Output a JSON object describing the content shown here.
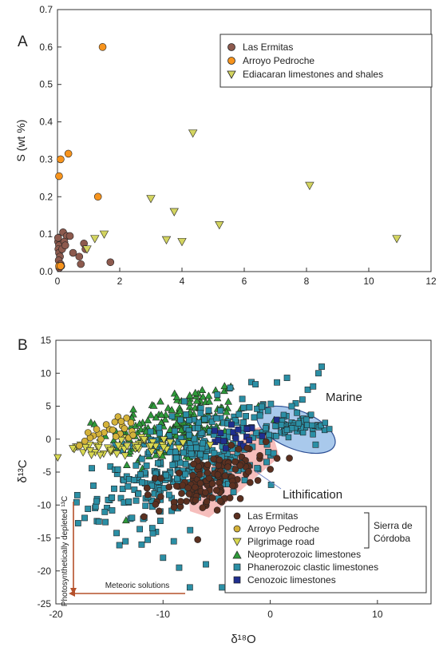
{
  "colors": {
    "las_ermitas": "#8d5a4e",
    "arroyo_pedroche": "#f7941d",
    "ediacaran": "#d3d460",
    "pilgrimage": "#d8d850",
    "arroyo_b": "#d4b23a",
    "neoproterozoic": "#2e9a3a",
    "phanerozoic": "#2b8fa5",
    "cenozoic": "#1f2f8f",
    "las_ermitas_b": "#5b3020",
    "marine_fill": "#a9c9ec",
    "lithif_fill": "#f3a8a6",
    "arrow": "#b5502a"
  },
  "chart_data": [
    {
      "type": "scatter",
      "panel_label": "A",
      "xlabel": "",
      "ylabel": "S (wt %)",
      "xlim": [
        0,
        12
      ],
      "ylim": [
        0,
        0.7
      ],
      "xticks": [
        "0",
        "2",
        "4",
        "6",
        "8",
        "10",
        "12"
      ],
      "yticks": [
        "0.0",
        "0.1",
        "0.2",
        "0.3",
        "0.4",
        "0.5",
        "0.6",
        "0.7"
      ],
      "legend_position": "top-right",
      "series": [
        {
          "name": "Las Ermitas",
          "marker": "circle",
          "points": [
            [
              0.02,
              0.08
            ],
            [
              0.05,
              0.07
            ],
            [
              0.03,
              0.06
            ],
            [
              0.05,
              0.05
            ],
            [
              0.08,
              0.04
            ],
            [
              0.04,
              0.03
            ],
            [
              0.1,
              0.02
            ],
            [
              0.12,
              0.015
            ],
            [
              0.06,
              0.01
            ],
            [
              0.15,
              0.06
            ],
            [
              0.18,
              0.105
            ],
            [
              0.3,
              0.095
            ],
            [
              0.4,
              0.095
            ],
            [
              0.22,
              0.08
            ],
            [
              0.25,
              0.07
            ],
            [
              0.5,
              0.05
            ],
            [
              0.7,
              0.04
            ],
            [
              0.75,
              0.02
            ],
            [
              0.85,
              0.075
            ],
            [
              0.9,
              0.06
            ],
            [
              1.7,
              0.025
            ],
            [
              0.02,
              0.09
            ]
          ]
        },
        {
          "name": "Arroyo Pedroche",
          "marker": "circle",
          "points": [
            [
              1.45,
              0.6
            ],
            [
              0.35,
              0.315
            ],
            [
              0.1,
              0.3
            ],
            [
              0.05,
              0.255
            ],
            [
              1.3,
              0.2
            ],
            [
              0.05,
              0.015
            ],
            [
              0.1,
              0.015
            ]
          ]
        },
        {
          "name": "Ediacaran limestones and shales",
          "marker": "triangle-down",
          "points": [
            [
              4.35,
              0.37
            ],
            [
              8.1,
              0.23
            ],
            [
              3.0,
              0.195
            ],
            [
              3.75,
              0.16
            ],
            [
              5.2,
              0.125
            ],
            [
              1.5,
              0.1
            ],
            [
              1.2,
              0.088
            ],
            [
              3.5,
              0.085
            ],
            [
              4.0,
              0.08
            ],
            [
              10.9,
              0.088
            ],
            [
              0.95,
              0.06
            ]
          ]
        }
      ]
    },
    {
      "type": "scatter",
      "panel_label": "B",
      "xlabel": "δ¹⁸O",
      "ylabel": "δ¹³C",
      "xlim": [
        -20,
        15
      ],
      "ylim": [
        -25,
        15
      ],
      "xticks": [
        "-20",
        "-10",
        "0",
        "10"
      ],
      "yticks": [
        "-25",
        "-20",
        "-15",
        "-10",
        "-5",
        "0",
        "5",
        "10",
        "15"
      ],
      "legend_position": "bottom-right",
      "legend_group": "Sierra de Córdoba",
      "legend_group_lines": [
        "Sierra de",
        "Córdoba"
      ],
      "annotations": {
        "marine": "Marine",
        "lithification": "Lithification",
        "meteoric": "Meteoric solutions",
        "photosynthetic": "Photosynthetically depleted ¹³C"
      },
      "series": [
        {
          "name": "Las Ermitas",
          "marker": "circle",
          "cloud": {
            "cx": -5.5,
            "cy": -6.5,
            "sx": 2.5,
            "sy": 2.5,
            "rho": 0.55,
            "n": 130
          }
        },
        {
          "name": "Arroyo Pedroche",
          "marker": "circle",
          "points": [
            [
              -14.5,
              2.6
            ],
            [
              -14.2,
              3.4
            ],
            [
              -13.8,
              2.0
            ],
            [
              -13.4,
              3.2
            ],
            [
              -13.0,
              2.5
            ],
            [
              -15.0,
              1.5
            ],
            [
              -15.5,
              1.0
            ],
            [
              -16.0,
              0.8
            ],
            [
              -16.5,
              0.5
            ],
            [
              -16.8,
              0.2
            ],
            [
              -17.3,
              -0.3
            ],
            [
              -17.8,
              -1.0
            ],
            [
              -14.7,
              1.4
            ],
            [
              -14.0,
              0.8
            ],
            [
              -13.6,
              1.6
            ],
            [
              -12.9,
              1.2
            ],
            [
              -15.3,
              2.2
            ],
            [
              -16.2,
              1.5
            ],
            [
              -17.0,
              1.0
            ],
            [
              -14.4,
              0.4
            ],
            [
              -13.2,
              0.2
            ],
            [
              -12.8,
              0.6
            ],
            [
              -13.9,
              2.7
            ],
            [
              -15.8,
              0.0
            ]
          ]
        },
        {
          "name": "Pilgrimage road",
          "marker": "triangle-down",
          "cloud": {
            "cx": -14,
            "cy": -1.2,
            "sx": 2.8,
            "sy": 0.7,
            "rho": 0.2,
            "n": 55
          }
        },
        {
          "name": "Neoproterozoic limestones",
          "marker": "triangle-up",
          "cloud": {
            "cx": -8.5,
            "cy": 2,
            "sx": 3.2,
            "sy": 3.2,
            "rho": 0.35,
            "n": 190
          }
        },
        {
          "name": "Phanerozoic clastic limestones",
          "marker": "square",
          "cloud": {
            "cx": -7.5,
            "cy": -3.5,
            "sx": 4.2,
            "sy": 4.5,
            "rho": 0.55,
            "n": 340
          },
          "points": [
            [
              2.5,
              4.0
            ],
            [
              3.5,
              7.5
            ],
            [
              4.0,
              8.0
            ],
            [
              4.5,
              10.0
            ],
            [
              4.8,
              11.0
            ],
            [
              3.0,
              6.0
            ],
            [
              2.0,
              5.0
            ],
            [
              -18.0,
              -8.5
            ],
            [
              -16.0,
              -12.5
            ],
            [
              -13.5,
              -15.5
            ],
            [
              -8.5,
              -19.5
            ],
            [
              -6.0,
              -19.0
            ],
            [
              -7.5,
              -22.5
            ],
            [
              -4.5,
              -22.5
            ],
            [
              -10.0,
              -18.0
            ],
            [
              -12.0,
              -16.0
            ],
            [
              -9.0,
              -15.5
            ],
            [
              -11.0,
              -13.5
            ],
            [
              0.5,
              2.0
            ],
            [
              1.0,
              1.0
            ],
            [
              1.5,
              1.5
            ],
            [
              2.0,
              2.5
            ],
            [
              1.5,
              3.5
            ],
            [
              3.0,
              3.0
            ],
            [
              0.8,
              2.8
            ],
            [
              2.5,
              1.2
            ]
          ]
        },
        {
          "name": "Cenozoic limestones",
          "marker": "square",
          "cloud": {
            "cx": -3,
            "cy": 0.5,
            "sx": 1.2,
            "sy": 1.0,
            "rho": 0.4,
            "n": 22
          }
        }
      ]
    }
  ]
}
